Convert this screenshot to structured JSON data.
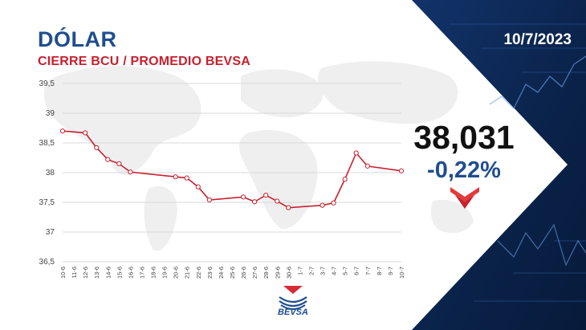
{
  "header": {
    "title": "DÓLAR",
    "subtitle": "CIERRE BCU / PROMEDIO BEVSA",
    "date": "10/7/2023"
  },
  "quote": {
    "price": "38,031",
    "change": "-0,22%",
    "direction_icon": "down-arrow-icon"
  },
  "brand": {
    "logo_text": "BEVSA",
    "logo_icon": "bevsa-logo-icon"
  },
  "colors": {
    "title": "#1f4e8f",
    "subtitle": "#c8202f",
    "line": "#c8202f",
    "panel": "#0b2550",
    "change": "#1f4e8f"
  },
  "chart_data": {
    "type": "line",
    "title": "",
    "xlabel": "",
    "ylabel": "",
    "ylim": [
      36.5,
      39.5
    ],
    "yticks": [
      36.5,
      37,
      37.5,
      38,
      38.5,
      39,
      39.5
    ],
    "ytick_labels": [
      "36,5",
      "37",
      "37,5",
      "38",
      "38,5",
      "39",
      "39,5"
    ],
    "grid": true,
    "legend": "none",
    "x": [
      "10-6",
      "11-6",
      "12-6",
      "13-6",
      "14-6",
      "15-6",
      "16-6",
      "17-6",
      "18-6",
      "19-6",
      "20-6",
      "21-6",
      "22-6",
      "23-6",
      "24-6",
      "25-6",
      "26-6",
      "27-6",
      "28-6",
      "29-6",
      "30-6",
      "1-7",
      "2-7",
      "3-7",
      "4-7",
      "5-7",
      "6-7",
      "7-7",
      "8-7",
      "9-7",
      "10-7"
    ],
    "series": [
      {
        "values": [
          38.7,
          null,
          38.67,
          38.42,
          38.22,
          38.15,
          38.01,
          null,
          null,
          null,
          37.93,
          37.91,
          37.76,
          37.54,
          null,
          null,
          37.59,
          37.51,
          37.62,
          37.52,
          37.41,
          null,
          null,
          37.45,
          37.49,
          37.89,
          38.33,
          38.11,
          null,
          null,
          38.03
        ]
      }
    ]
  }
}
